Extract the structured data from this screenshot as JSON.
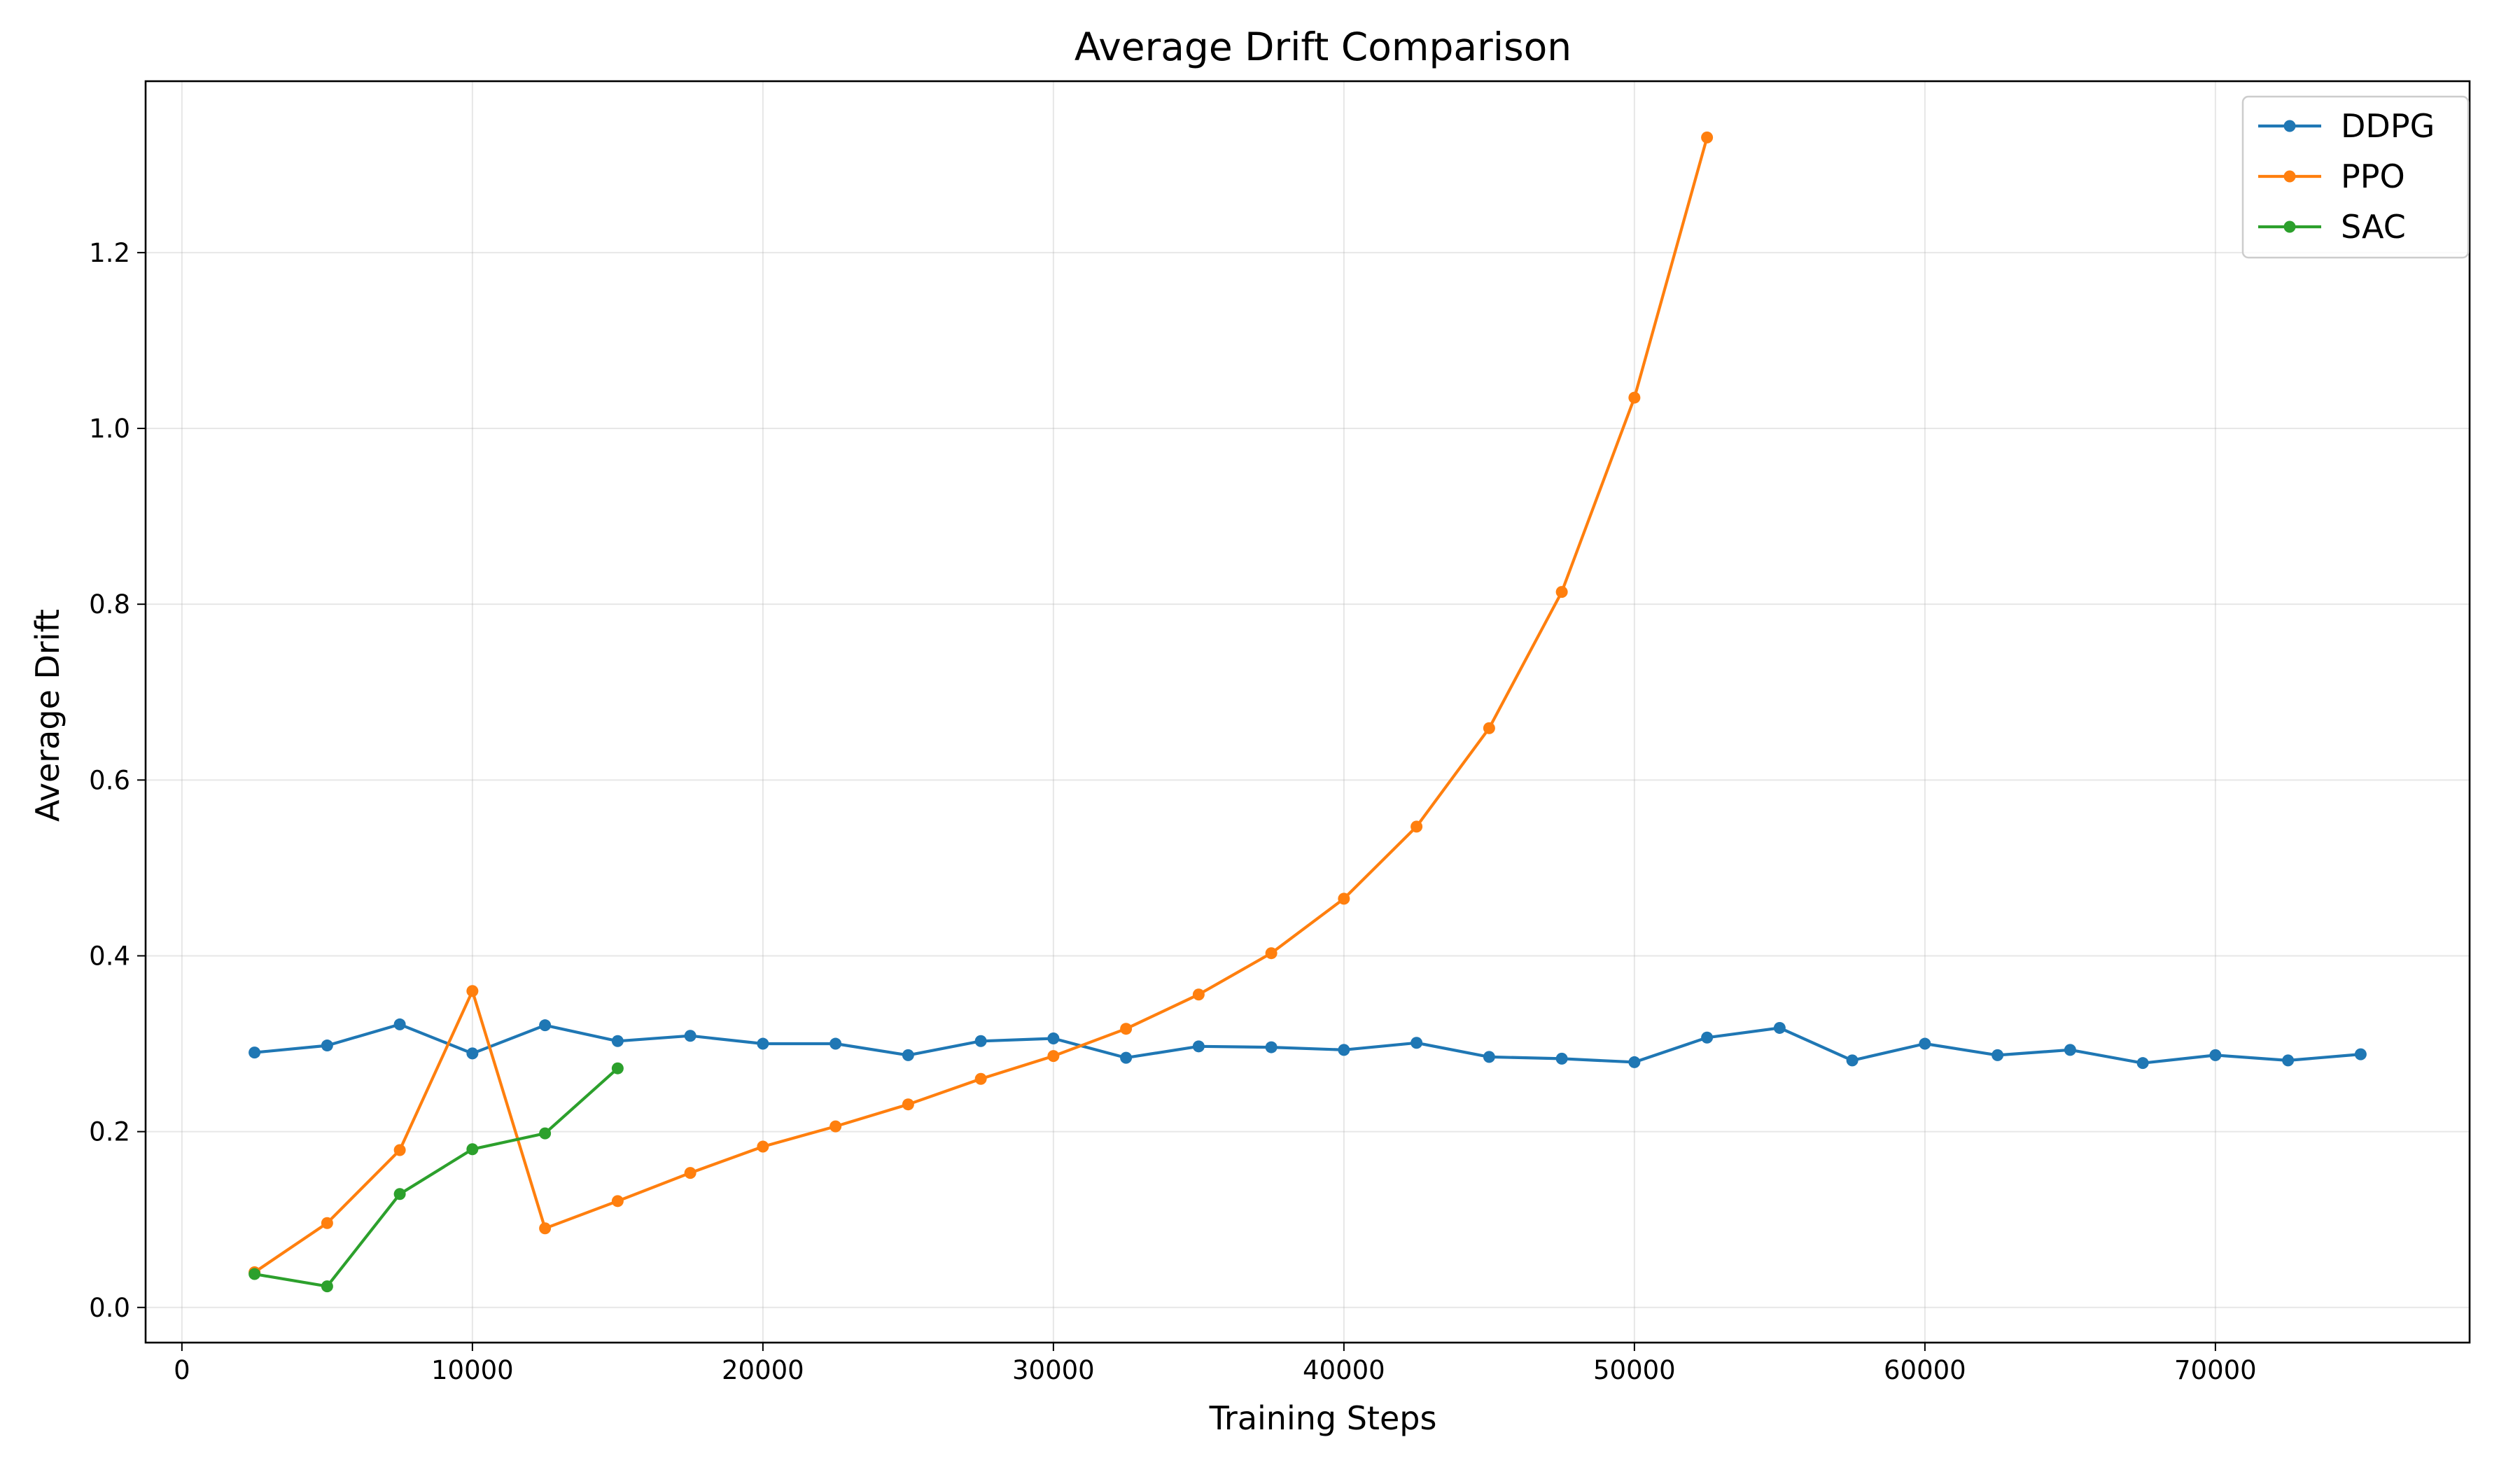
{
  "chart_data": {
    "type": "line",
    "title": "Average Drift Comparison",
    "xlabel": "Training Steps",
    "ylabel": "Average Drift",
    "xlim": [
      -1250,
      78750
    ],
    "ylim": [
      -0.04,
      1.395
    ],
    "xticks": [
      0,
      10000,
      20000,
      30000,
      40000,
      50000,
      60000,
      70000
    ],
    "yticks": [
      0.0,
      0.2,
      0.4,
      0.6,
      0.8,
      1.0,
      1.2
    ],
    "xtick_labels": [
      "0",
      "10000",
      "20000",
      "30000",
      "40000",
      "50000",
      "60000",
      "70000"
    ],
    "ytick_labels": [
      "0.0",
      "0.2",
      "0.4",
      "0.6",
      "0.8",
      "1.0",
      "1.2"
    ],
    "grid": true,
    "legend_position": "top-right",
    "series": [
      {
        "name": "DDPG",
        "color": "#1f77b4",
        "x": [
          2500,
          5000,
          7500,
          10000,
          12500,
          15000,
          17500,
          20000,
          22500,
          25000,
          27500,
          30000,
          32500,
          35000,
          37500,
          40000,
          42500,
          45000,
          47500,
          50000,
          52500,
          55000,
          57500,
          60000,
          62500,
          65000,
          67500,
          70000,
          72500,
          75000
        ],
        "y": [
          0.29,
          0.298,
          0.322,
          0.289,
          0.321,
          0.303,
          0.309,
          0.3,
          0.3,
          0.287,
          0.303,
          0.306,
          0.284,
          0.297,
          0.296,
          0.293,
          0.301,
          0.285,
          0.283,
          0.279,
          0.307,
          0.318,
          0.281,
          0.3,
          0.287,
          0.293,
          0.278,
          0.287,
          0.281,
          0.288
        ]
      },
      {
        "name": "PPO",
        "color": "#ff7f0e",
        "x": [
          2500,
          5000,
          7500,
          10000,
          12500,
          15000,
          17500,
          20000,
          22500,
          25000,
          27500,
          30000,
          32500,
          35000,
          37500,
          40000,
          42500,
          45000,
          47500,
          50000,
          52500
        ],
        "y": [
          0.04,
          0.096,
          0.179,
          0.36,
          0.09,
          0.121,
          0.153,
          0.183,
          0.206,
          0.231,
          0.26,
          0.286,
          0.317,
          0.356,
          0.403,
          0.465,
          0.547,
          0.659,
          0.814,
          1.035,
          1.331
        ]
      },
      {
        "name": "SAC",
        "color": "#2ca02c",
        "x": [
          2500,
          5000,
          7500,
          10000,
          12500,
          15000
        ],
        "y": [
          0.038,
          0.024,
          0.129,
          0.18,
          0.198,
          0.272
        ]
      }
    ]
  }
}
